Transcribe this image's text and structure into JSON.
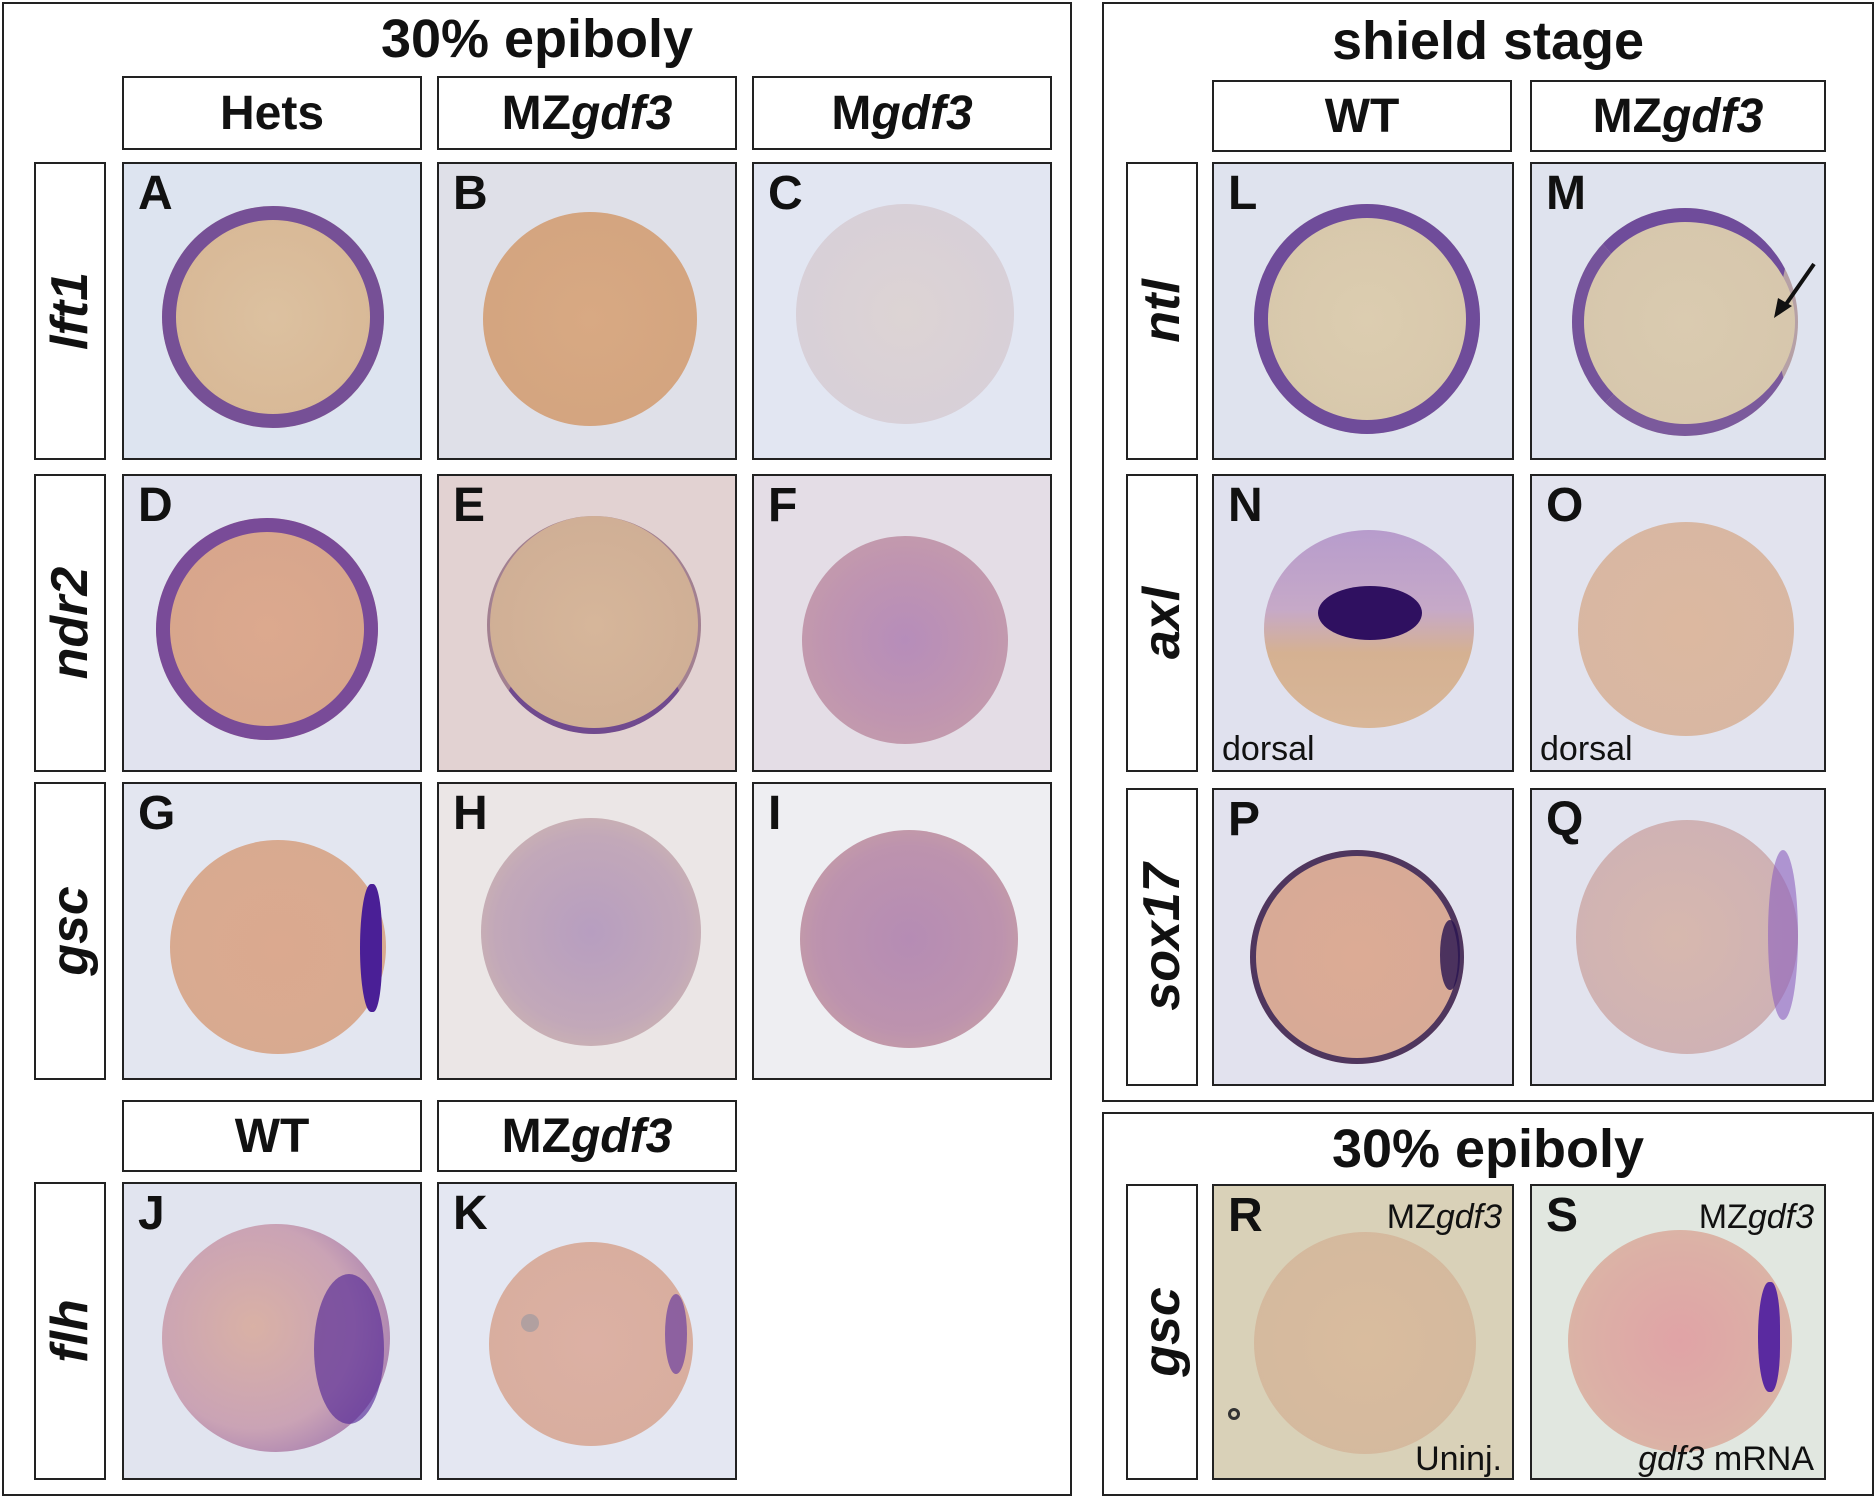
{
  "left_section": {
    "title": "30% epiboly",
    "columns": [
      "Hets",
      "MZ",
      "M"
    ],
    "columns_italic": [
      "",
      "gdf3",
      "gdf3"
    ],
    "genes": [
      "lft1",
      "ndr2",
      "gsc",
      "flh"
    ],
    "bottom_columns": [
      "WT",
      "MZ"
    ],
    "bottom_columns_italic": [
      "",
      "gdf3"
    ]
  },
  "right_top_section": {
    "title": "shield stage",
    "columns": [
      "WT",
      "MZ"
    ],
    "columns_italic": [
      "",
      "gdf3"
    ],
    "genes": [
      "ntl",
      "axl",
      "sox17"
    ]
  },
  "right_bottom_section": {
    "title": "30% epiboly",
    "gene": "gsc"
  },
  "panels": {
    "A": "A",
    "B": "B",
    "C": "C",
    "D": "D",
    "E": "E",
    "F": "F",
    "G": "G",
    "H": "H",
    "I": "I",
    "J": "J",
    "K": "K",
    "L": "L",
    "M": "M",
    "N": "N",
    "O": "O",
    "P": "P",
    "Q": "Q",
    "R": "R",
    "S": "S"
  },
  "notes": {
    "N": "dorsal",
    "O": "dorsal",
    "R_top_plain": "MZ",
    "R_top_italic": "gdf3",
    "R_bottom": "Uninj.",
    "S_top_plain": "MZ",
    "S_top_italic": "gdf3",
    "S_bottom_italic": "gdf3",
    "S_bottom_plain": " mRNA"
  },
  "colors": {
    "stain": "#4a2a8c",
    "embryo": "#d9b79a",
    "background": "#dfe3ee"
  }
}
